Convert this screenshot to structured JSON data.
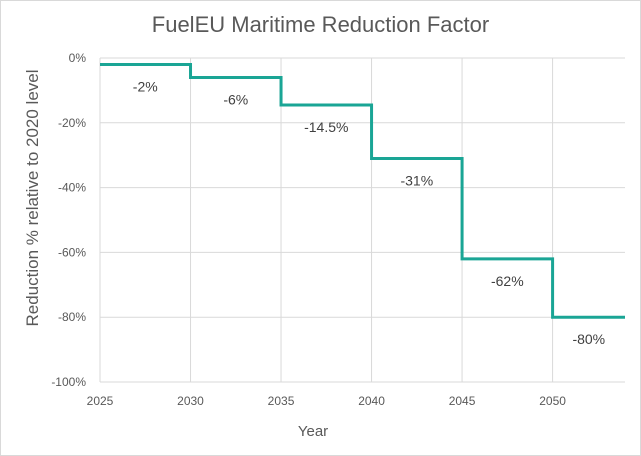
{
  "chart_data": {
    "type": "line",
    "style": "step",
    "title": "FuelEU Maritime Reduction Factor",
    "xlabel": "Year",
    "ylabel": "Reduction % relative to 2020 level",
    "xlim": [
      2025,
      2054
    ],
    "ylim": [
      -100,
      0
    ],
    "x_ticks": [
      "2025",
      "2030",
      "2035",
      "2040",
      "2045",
      "2050"
    ],
    "y_ticks": [
      "0%",
      "-20%",
      "-40%",
      "-60%",
      "-80%",
      "-100%"
    ],
    "y_tick_values": [
      0,
      -20,
      -40,
      -60,
      -80,
      -100
    ],
    "x_tick_values": [
      2025,
      2030,
      2035,
      2040,
      2045,
      2050
    ],
    "grid": "horizontal",
    "line_color": "#1aa595",
    "series": [
      {
        "steps": [
          {
            "x_start": 2025,
            "x_end": 2030,
            "value": -2,
            "label": "-2%"
          },
          {
            "x_start": 2030,
            "x_end": 2035,
            "value": -6,
            "label": "-6%"
          },
          {
            "x_start": 2035,
            "x_end": 2040,
            "value": -14.5,
            "label": "-14.5%"
          },
          {
            "x_start": 2040,
            "x_end": 2045,
            "value": -31,
            "label": "-31%"
          },
          {
            "x_start": 2045,
            "x_end": 2050,
            "value": -62,
            "label": "-62%"
          },
          {
            "x_start": 2050,
            "x_end": 2054,
            "value": -80,
            "label": "-80%"
          }
        ]
      }
    ]
  }
}
